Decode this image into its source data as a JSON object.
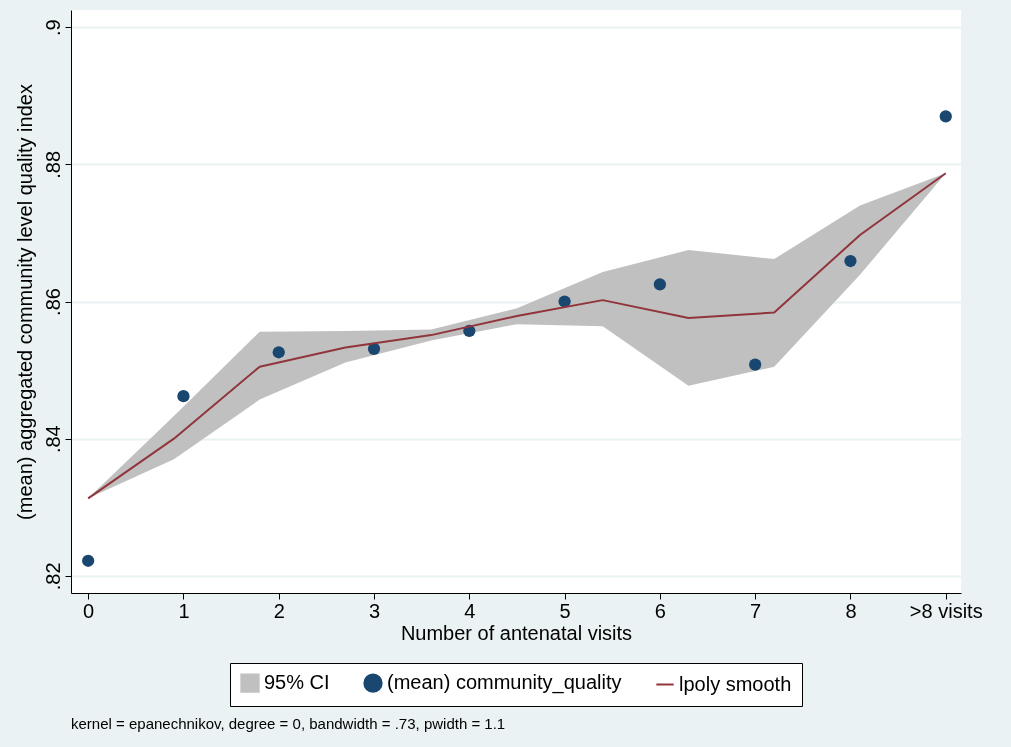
{
  "chart_data": {
    "type": "scatter",
    "xlabel": "Number of antenatal visits",
    "ylabel": "(mean) aggregated community level quality index",
    "annotations": [
      "kernel = epanechnikov, degree = 0, bandwidth = .73, pwidth = 1.1"
    ],
    "x": [
      0,
      1,
      2,
      3,
      4,
      5,
      6,
      7,
      8,
      9
    ],
    "series": [
      {
        "name": "95% CI",
        "type": "area",
        "color": "#c0c0c0",
        "x": [
          0,
          0.9,
          1.8,
          2.7,
          3.6,
          4.5,
          5.4,
          6.3,
          7.2,
          8.1,
          9
        ],
        "values": [
          null,
          null,
          null,
          null,
          null,
          null,
          null,
          null,
          null,
          null,
          null
        ],
        "lower": [
          0.8313,
          0.837,
          0.8457,
          0.8511,
          0.8543,
          0.8567,
          0.8564,
          0.8477,
          0.8505,
          0.8639,
          0.8787
        ],
        "upper": [
          0.8313,
          0.8433,
          0.8556,
          0.8557,
          0.8559,
          0.859,
          0.8643,
          0.8675,
          0.8662,
          0.874,
          0.8787
        ]
      },
      {
        "name": "(mean) community_quality",
        "type": "scatter",
        "marker": "circle",
        "color": "#1a476f",
        "values": [
          0.8222,
          0.8462,
          0.8526,
          0.8531,
          0.8557,
          0.86,
          0.8625,
          0.8508,
          0.8659,
          0.887
        ]
      },
      {
        "name": "lpoly smooth",
        "type": "line",
        "color": "#90353b",
        "x": [
          0,
          0.9,
          1.8,
          2.7,
          3.6,
          4.5,
          5.4,
          6.3,
          7.2,
          8.1,
          9
        ],
        "values": [
          0.8313,
          0.84,
          0.8505,
          0.8533,
          0.8551,
          0.8579,
          0.8602,
          0.8576,
          0.8584,
          0.8697,
          0.8787
        ]
      }
    ],
    "xlim": [
      -0.18,
      9.16
    ],
    "xticks": [
      0,
      1,
      2,
      3,
      4,
      5,
      6,
      7,
      8,
      {
        "value": 9,
        "label": ">8 visits"
      }
    ],
    "ylim": [
      0.8175,
      0.9025
    ],
    "yticks": [
      {
        "value": 0.82,
        "label": ".82"
      },
      {
        "value": 0.84,
        "label": ".84"
      },
      {
        "value": 0.86,
        "label": ".86"
      },
      {
        "value": 0.88,
        "label": ".88"
      },
      {
        "value": 0.9,
        "label": ".9"
      }
    ],
    "grid": "y",
    "legend": "bottom"
  }
}
